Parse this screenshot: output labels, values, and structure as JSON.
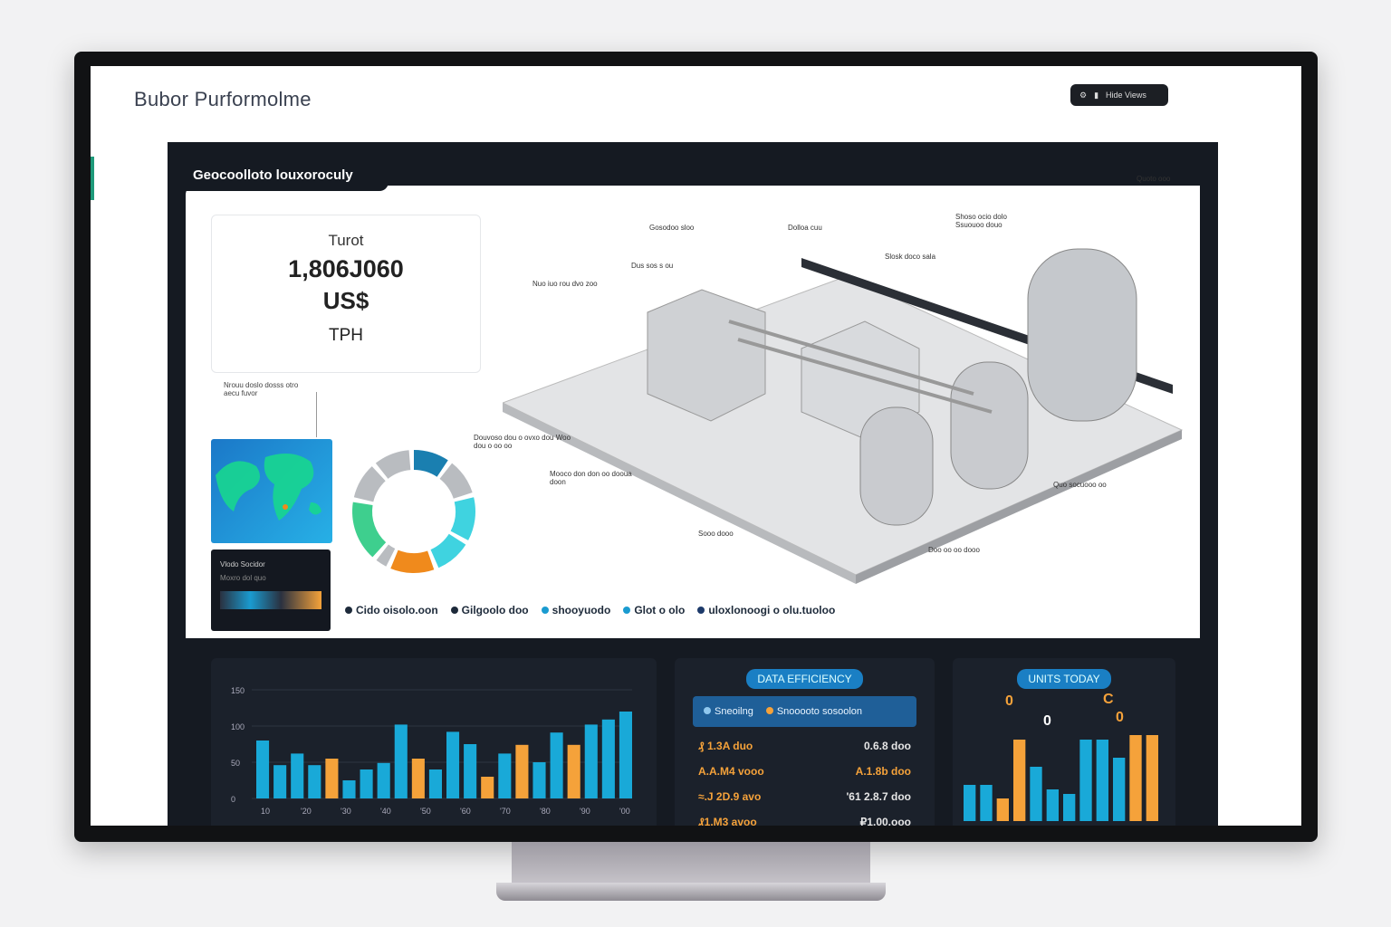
{
  "header": {
    "title": "Bubor Purformolme",
    "button_label": "Hide Views"
  },
  "panel": {
    "tab_label": "Geocoolloto louxoroculy"
  },
  "kpi": {
    "label": "Turot",
    "value": "1,806J060",
    "unit": "US$",
    "sub": "TPH"
  },
  "notes": {
    "kpi_note": "Nrouu doslo dosss otro aecu fuvor",
    "dark_tile_title": "Vlodo Socidor",
    "dark_tile_sub": "Moxro dol quo"
  },
  "donut": {
    "segments": [
      {
        "value": 10,
        "color": "#1a7fb0"
      },
      {
        "value": 10,
        "color": "#b9bcc0"
      },
      {
        "value": 12,
        "color": "#3fd3e0"
      },
      {
        "value": 10,
        "color": "#3fd3e0"
      },
      {
        "value": 12,
        "color": "#f08a1c"
      },
      {
        "value": 4,
        "color": "#b9bcc0"
      },
      {
        "value": 16,
        "color": "#3ecf8e"
      },
      {
        "value": 10,
        "color": "#b9bcc0"
      },
      {
        "value": 10,
        "color": "#b9bcc0"
      }
    ]
  },
  "plant_labels": [
    "Gosodoo sloo",
    "Dolloa cuu",
    "Shoso ocio dolo Ssuouoo douo",
    "Dus sos s ou",
    "Slosk doco sala",
    "Nuo iuo rou dvo zoo",
    "Quoto ooo",
    "Douvoso dou o ovxo dou Woo dou o oo oo",
    "Mooco don don oo dooua doon",
    "Sooo dooo",
    "Quo socuooo oo",
    "Doo oo oo dooo"
  ],
  "legend": [
    {
      "label": "Cido oisolo.oon",
      "color": "#1d2a3a"
    },
    {
      "label": "Gilgoolo doo",
      "color": "#1d2a3a"
    },
    {
      "label": "shooyuodo",
      "color": "#1a9bd0"
    },
    {
      "label": "Glot o olo",
      "color": "#1a9bd0"
    },
    {
      "label": "uloxlonoogi o olu.tuoloo",
      "color": "#1d3a6a"
    }
  ],
  "chart_data": [
    {
      "type": "bar",
      "y_ticks": [
        "150",
        "100",
        "50",
        "0"
      ],
      "ylim": [
        0,
        150
      ],
      "x_ticks": [
        "10",
        "'20",
        "'30",
        "'40",
        "'50",
        "'60",
        "'70",
        "'80",
        "'90",
        "'00"
      ],
      "values": [
        80,
        46,
        62,
        46,
        55,
        25,
        40,
        49,
        102,
        55,
        40,
        92,
        75,
        30,
        62,
        74,
        50,
        91,
        74,
        102,
        109,
        120
      ],
      "highlight_indices": [
        4,
        9,
        13,
        15,
        18
      ],
      "colors": {
        "base": "#19a9d8",
        "highlight": "#f5a23a"
      }
    },
    {
      "type": "bar",
      "values": [
        40,
        40,
        25,
        90,
        60,
        35,
        30,
        90,
        90,
        70,
        95,
        95
      ],
      "highlight_indices": [
        2,
        3,
        10,
        11
      ],
      "colors": {
        "base": "#19a9d8",
        "highlight": "#f5a23a"
      }
    }
  ],
  "efficiency": {
    "pill": "DATA EFFICIENCY",
    "legend": [
      {
        "label": "Sneoilng",
        "color": "#8fc7ee"
      },
      {
        "label": "Snooooto sosoolon",
        "color": "#f5a23a"
      }
    ],
    "rows": [
      [
        "₰ 1.3A duo",
        "0.6.8 doo"
      ],
      [
        "A.A.M4 vooo",
        "A.1.8b doo"
      ],
      [
        "≈.J 2D.9 avo",
        "'61 2.8.7 doo"
      ],
      [
        "₰1.M3 avoo",
        "₽1.00.ooo"
      ]
    ]
  },
  "units": {
    "pill": "UNITS TODAY",
    "badges": [
      "0",
      "0",
      "C",
      "0"
    ]
  }
}
